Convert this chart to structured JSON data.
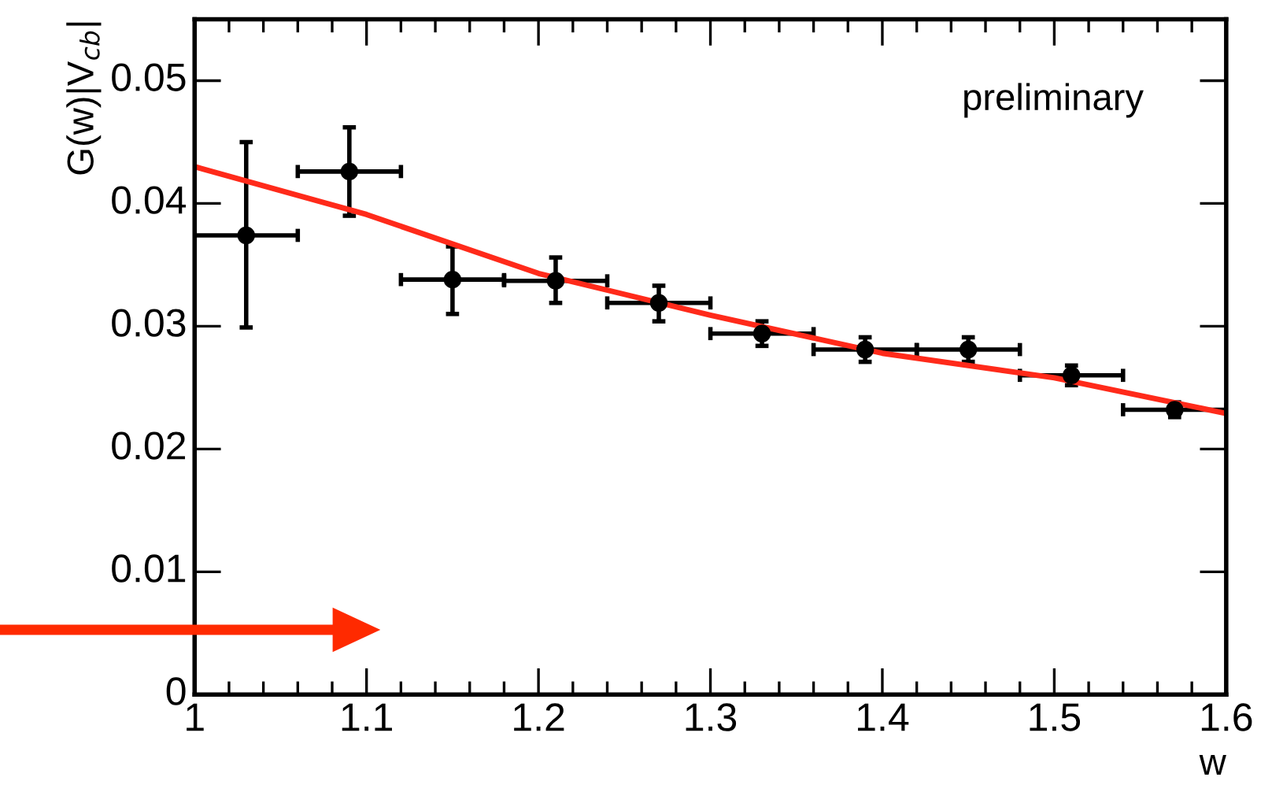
{
  "chart_data": {
    "type": "scatter",
    "xlabel": "w",
    "ylabel": "G(w)|V$_{cb}$|",
    "annotations": [
      "preliminary"
    ],
    "xlim": [
      1,
      1.6
    ],
    "xticks": [
      1,
      1.1,
      1.2,
      1.3,
      1.4,
      1.5,
      1.6
    ],
    "ylim": [
      0,
      0.055
    ],
    "yticks": [
      {
        "value": 0,
        "label": "0"
      },
      0.01,
      0.02,
      0.03,
      0.04,
      0.05
    ],
    "grid": false,
    "marker": "circle",
    "series": [
      {
        "color": "#000000",
        "x": [
          1.03,
          1.09,
          1.15,
          1.21,
          1.27,
          1.33,
          1.39,
          1.45,
          1.51,
          1.57
        ],
        "values": [
          0.0374,
          0.0426,
          0.0338,
          0.0337,
          0.0319,
          0.0294,
          0.0281,
          0.0281,
          0.026,
          0.0232
        ],
        "errors": [
          [
            0.0299,
            0.045
          ],
          [
            0.039,
            0.0462
          ],
          [
            0.031,
            0.0365
          ],
          [
            0.0319,
            0.0356
          ],
          [
            0.0304,
            0.0333
          ],
          [
            0.0284,
            0.0304
          ],
          [
            0.0271,
            0.0291
          ],
          [
            0.0271,
            0.0291
          ],
          [
            0.0252,
            0.0268
          ],
          [
            0.0226,
            0.0238
          ]
        ],
        "xerrors": [
          0.03,
          0.03,
          0.03,
          0.03,
          0.03,
          0.03,
          0.03,
          0.03,
          0.03,
          0.03
        ]
      },
      {
        "type": "line",
        "color": "#ff2a1a",
        "marker": "none",
        "x": [
          1.0,
          1.1,
          1.2,
          1.3,
          1.4,
          1.5,
          1.6
        ],
        "values": [
          0.043,
          0.0391,
          0.0343,
          0.0309,
          0.0278,
          0.0258,
          0.0229
        ]
      }
    ]
  }
}
